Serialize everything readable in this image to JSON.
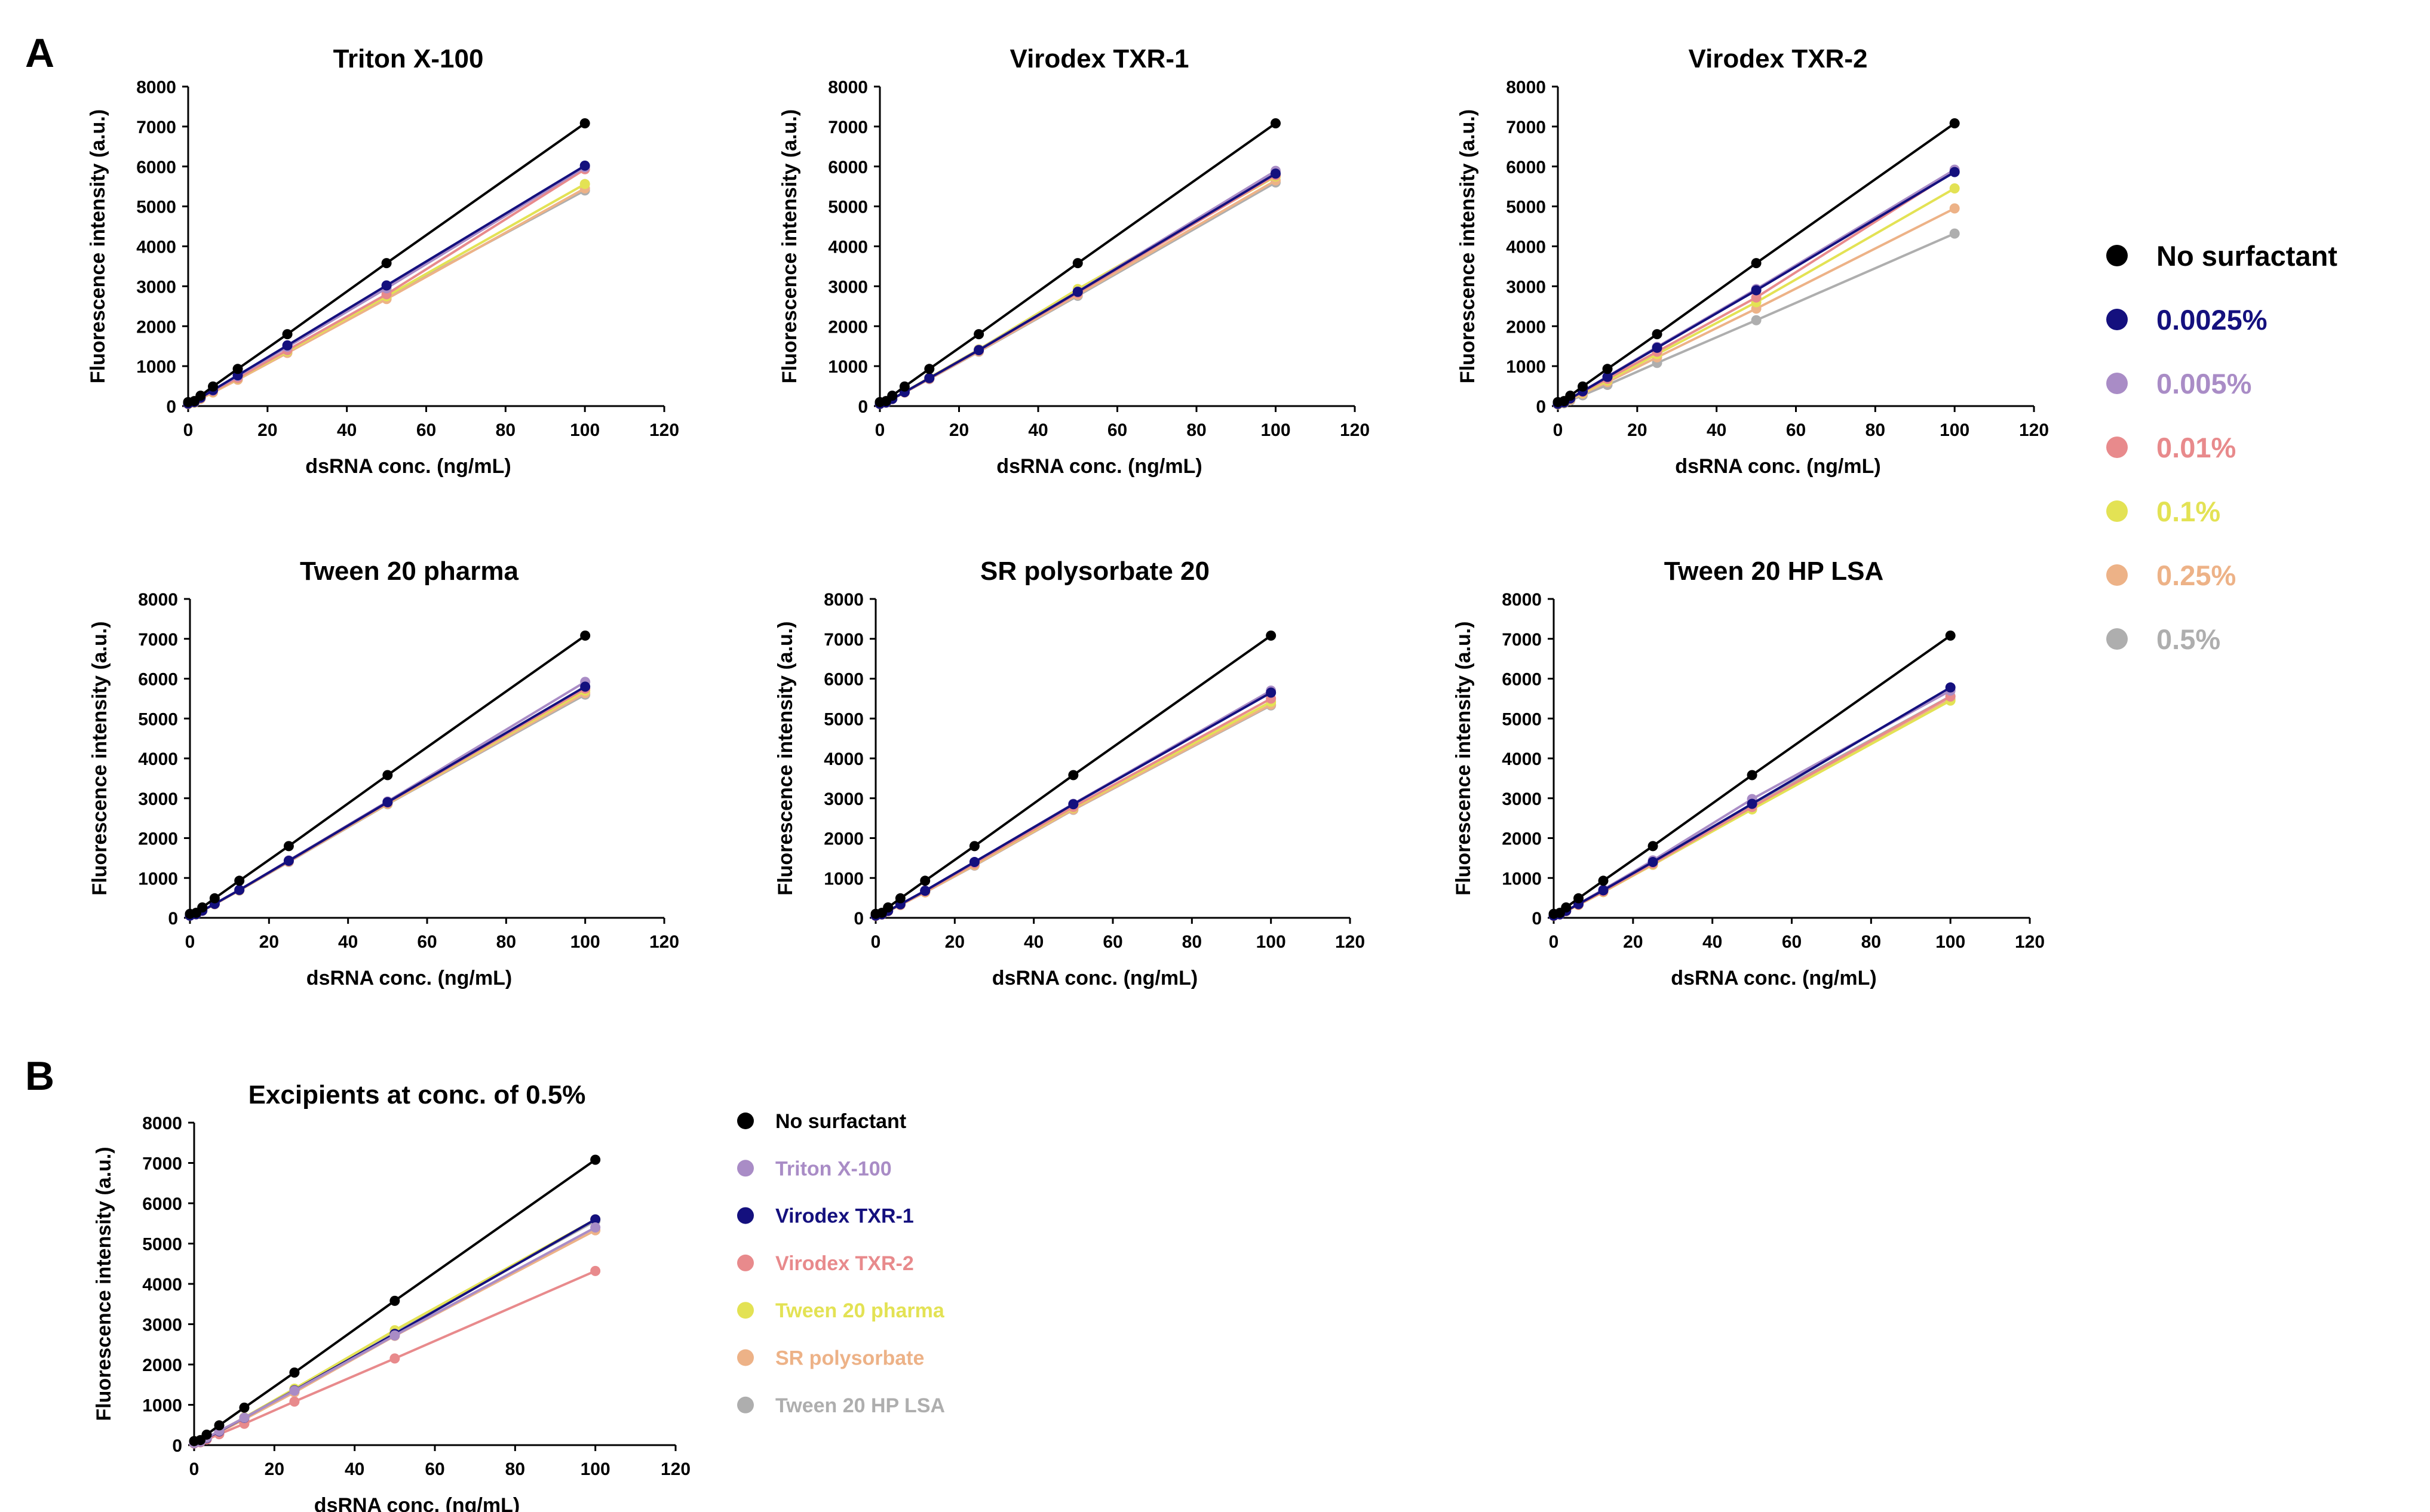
{
  "panel_letters": {
    "a": "A",
    "b": "B"
  },
  "legend_a": [
    {
      "label": "No surfactant",
      "color": "#000000"
    },
    {
      "label": "0.0025%",
      "color": "#14107e"
    },
    {
      "label": "0.005%",
      "color": "#a98cc6"
    },
    {
      "label": "0.01%",
      "color": "#e88a8c"
    },
    {
      "label": "0.1%",
      "color": "#e3e254"
    },
    {
      "label": "0.25%",
      "color": "#edb287"
    },
    {
      "label": "0.5%",
      "color": "#aeaeae"
    }
  ],
  "legend_b": [
    {
      "label": "No surfactant",
      "color": "#000000"
    },
    {
      "label": "Triton X-100",
      "color": "#a98cc6"
    },
    {
      "label": "Virodex TXR-1",
      "color": "#14107e"
    },
    {
      "label": "Virodex TXR-2",
      "color": "#e88a8c"
    },
    {
      "label": "Tween 20 pharma",
      "color": "#e3e254"
    },
    {
      "label": "SR polysorbate",
      "color": "#edb287"
    },
    {
      "label": "Tween 20 HP LSA",
      "color": "#aeaeae"
    }
  ],
  "chart_data": [
    {
      "type": "line",
      "title": "Triton X-100",
      "xlabel": "dsRNA conc. (ng/mL)",
      "ylabel": "Fluorescence intensity (a.u.)",
      "xlim": [
        0,
        120
      ],
      "ylim": [
        0,
        8000
      ],
      "xticks": [
        0,
        20,
        40,
        60,
        80,
        100,
        120
      ],
      "yticks": [
        0,
        1000,
        2000,
        3000,
        4000,
        5000,
        6000,
        7000,
        8000
      ],
      "x": [
        0,
        1.5625,
        3.125,
        6.25,
        12.5,
        25,
        50,
        100
      ],
      "series": [
        {
          "name": "No surfactant",
          "color": "#000000",
          "values": [
            100,
            125,
            260,
            490,
            930,
            1800,
            3580,
            7080
          ]
        },
        {
          "name": "0.0025%",
          "color": "#14107e",
          "values": [
            60,
            100,
            210,
            400,
            770,
            1520,
            3020,
            6020
          ]
        },
        {
          "name": "0.005%",
          "color": "#a98cc6",
          "values": [
            60,
            100,
            205,
            390,
            750,
            1480,
            2950,
            5980
          ]
        },
        {
          "name": "0.01%",
          "color": "#e88a8c",
          "values": [
            55,
            95,
            195,
            370,
            700,
            1400,
            2800,
            5930
          ]
        },
        {
          "name": "0.1%",
          "color": "#e3e254",
          "values": [
            55,
            90,
            190,
            360,
            690,
            1370,
            2750,
            5560
          ]
        },
        {
          "name": "0.25%",
          "color": "#edb287",
          "values": [
            50,
            85,
            180,
            340,
            660,
            1330,
            2680,
            5450
          ]
        },
        {
          "name": "0.5%",
          "color": "#aeaeae",
          "values": [
            50,
            85,
            185,
            350,
            680,
            1350,
            2720,
            5400
          ]
        }
      ]
    },
    {
      "type": "line",
      "title": "Virodex TXR-1",
      "xlabel": "dsRNA conc. (ng/mL)",
      "ylabel": "Fluorescence intensity (a.u.)",
      "xlim": [
        0,
        120
      ],
      "ylim": [
        0,
        8000
      ],
      "xticks": [
        0,
        20,
        40,
        60,
        80,
        100,
        120
      ],
      "yticks": [
        0,
        1000,
        2000,
        3000,
        4000,
        5000,
        6000,
        7000,
        8000
      ],
      "x": [
        0,
        1.5625,
        3.125,
        6.25,
        12.5,
        25,
        50,
        100
      ],
      "series": [
        {
          "name": "No surfactant",
          "color": "#000000",
          "values": [
            100,
            125,
            260,
            490,
            930,
            1800,
            3580,
            7080
          ]
        },
        {
          "name": "0.0025%",
          "color": "#14107e",
          "values": [
            55,
            90,
            180,
            350,
            700,
            1400,
            2860,
            5820
          ]
        },
        {
          "name": "0.005%",
          "color": "#a98cc6",
          "values": [
            55,
            90,
            180,
            350,
            700,
            1410,
            2870,
            5890
          ]
        },
        {
          "name": "0.01%",
          "color": "#e88a8c",
          "values": [
            55,
            90,
            180,
            345,
            690,
            1390,
            2830,
            5780
          ]
        },
        {
          "name": "0.1%",
          "color": "#e3e254",
          "values": [
            55,
            90,
            185,
            355,
            710,
            1420,
            2930,
            5750
          ]
        },
        {
          "name": "0.25%",
          "color": "#edb287",
          "values": [
            50,
            85,
            175,
            340,
            680,
            1370,
            2790,
            5650
          ]
        },
        {
          "name": "0.5%",
          "color": "#aeaeae",
          "values": [
            50,
            85,
            175,
            340,
            675,
            1360,
            2760,
            5600
          ]
        }
      ]
    },
    {
      "type": "line",
      "title": "Virodex TXR-2",
      "xlabel": "dsRNA conc. (ng/mL)",
      "ylabel": "Fluorescence intensity (a.u.)",
      "xlim": [
        0,
        120
      ],
      "ylim": [
        0,
        8000
      ],
      "xticks": [
        0,
        20,
        40,
        60,
        80,
        100,
        120
      ],
      "yticks": [
        0,
        1000,
        2000,
        3000,
        4000,
        5000,
        6000,
        7000,
        8000
      ],
      "x": [
        0,
        1.5625,
        3.125,
        6.25,
        12.5,
        25,
        50,
        100
      ],
      "series": [
        {
          "name": "No surfactant",
          "color": "#000000",
          "values": [
            100,
            125,
            260,
            490,
            930,
            1800,
            3580,
            7080
          ]
        },
        {
          "name": "0.0025%",
          "color": "#14107e",
          "values": [
            55,
            90,
            190,
            370,
            730,
            1460,
            2900,
            5860
          ]
        },
        {
          "name": "0.005%",
          "color": "#a98cc6",
          "values": [
            55,
            90,
            190,
            375,
            740,
            1480,
            2930,
            5920
          ]
        },
        {
          "name": "0.01%",
          "color": "#e88a8c",
          "values": [
            55,
            90,
            180,
            350,
            680,
            1360,
            2720,
            5880
          ]
        },
        {
          "name": "0.1%",
          "color": "#e3e254",
          "values": [
            50,
            85,
            170,
            330,
            640,
            1300,
            2600,
            5450
          ]
        },
        {
          "name": "0.25%",
          "color": "#edb287",
          "values": [
            45,
            80,
            160,
            310,
            600,
            1220,
            2440,
            4950
          ]
        },
        {
          "name": "0.5%",
          "color": "#aeaeae",
          "values": [
            40,
            70,
            140,
            270,
            530,
            1080,
            2150,
            4320
          ]
        }
      ]
    },
    {
      "type": "line",
      "title": "Tween 20 pharma",
      "xlabel": "dsRNA conc. (ng/mL)",
      "ylabel": "Fluorescence intensity (a.u.)",
      "xlim": [
        0,
        120
      ],
      "ylim": [
        0,
        8000
      ],
      "xticks": [
        0,
        20,
        40,
        60,
        80,
        100,
        120
      ],
      "yticks": [
        0,
        1000,
        2000,
        3000,
        4000,
        5000,
        6000,
        7000,
        8000
      ],
      "x": [
        0,
        1.5625,
        3.125,
        6.25,
        12.5,
        25,
        50,
        100
      ],
      "series": [
        {
          "name": "No surfactant",
          "color": "#000000",
          "values": [
            100,
            125,
            260,
            490,
            930,
            1800,
            3580,
            7080
          ]
        },
        {
          "name": "0.0025%",
          "color": "#14107e",
          "values": [
            55,
            90,
            180,
            350,
            700,
            1430,
            2900,
            5800
          ]
        },
        {
          "name": "0.005%",
          "color": "#a98cc6",
          "values": [
            55,
            90,
            180,
            350,
            700,
            1440,
            2920,
            5920
          ]
        },
        {
          "name": "0.01%",
          "color": "#e88a8c",
          "values": [
            55,
            88,
            178,
            345,
            695,
            1420,
            2880,
            5750
          ]
        },
        {
          "name": "0.1%",
          "color": "#e3e254",
          "values": [
            55,
            88,
            178,
            345,
            690,
            1420,
            2870,
            5700
          ]
        },
        {
          "name": "0.25%",
          "color": "#edb287",
          "values": [
            55,
            88,
            176,
            342,
            688,
            1410,
            2860,
            5640
          ]
        },
        {
          "name": "0.5%",
          "color": "#aeaeae",
          "values": [
            55,
            88,
            176,
            340,
            685,
            1400,
            2850,
            5600
          ]
        }
      ]
    },
    {
      "type": "line",
      "title": "SR polysorbate 20",
      "xlabel": "dsRNA conc. (ng/mL)",
      "ylabel": "Fluorescence intensity (a.u.)",
      "xlim": [
        0,
        120
      ],
      "ylim": [
        0,
        8000
      ],
      "xticks": [
        0,
        20,
        40,
        60,
        80,
        100,
        120
      ],
      "yticks": [
        0,
        1000,
        2000,
        3000,
        4000,
        5000,
        6000,
        7000,
        8000
      ],
      "x": [
        0,
        1.5625,
        3.125,
        6.25,
        12.5,
        25,
        50,
        100
      ],
      "series": [
        {
          "name": "No surfactant",
          "color": "#000000",
          "values": [
            100,
            125,
            260,
            490,
            930,
            1800,
            3580,
            7080
          ]
        },
        {
          "name": "0.0025%",
          "color": "#14107e",
          "values": [
            55,
            88,
            175,
            340,
            680,
            1400,
            2850,
            5650
          ]
        },
        {
          "name": "0.005%",
          "color": "#a98cc6",
          "values": [
            55,
            88,
            175,
            340,
            680,
            1400,
            2860,
            5700
          ]
        },
        {
          "name": "0.01%",
          "color": "#e88a8c",
          "values": [
            50,
            85,
            170,
            330,
            660,
            1360,
            2780,
            5500
          ]
        },
        {
          "name": "0.1%",
          "color": "#e3e254",
          "values": [
            50,
            85,
            170,
            330,
            655,
            1350,
            2760,
            5420
          ]
        },
        {
          "name": "0.25%",
          "color": "#edb287",
          "values": [
            48,
            82,
            165,
            320,
            640,
            1320,
            2720,
            5350
          ]
        },
        {
          "name": "0.5%",
          "color": "#aeaeae",
          "values": [
            48,
            82,
            165,
            320,
            640,
            1310,
            2710,
            5330
          ]
        }
      ]
    },
    {
      "type": "line",
      "title": "Tween 20 HP LSA",
      "xlabel": "dsRNA conc. (ng/mL)",
      "ylabel": "Fluorescence intensity (a.u.)",
      "xlim": [
        0,
        120
      ],
      "ylim": [
        0,
        8000
      ],
      "xticks": [
        0,
        20,
        40,
        60,
        80,
        100,
        120
      ],
      "yticks": [
        0,
        1000,
        2000,
        3000,
        4000,
        5000,
        6000,
        7000,
        8000
      ],
      "x": [
        0,
        1.5625,
        3.125,
        6.25,
        12.5,
        25,
        50,
        100
      ],
      "series": [
        {
          "name": "No surfactant",
          "color": "#000000",
          "values": [
            100,
            125,
            260,
            490,
            930,
            1800,
            3580,
            7080
          ]
        },
        {
          "name": "0.0025%",
          "color": "#14107e",
          "values": [
            55,
            88,
            175,
            345,
            690,
            1400,
            2860,
            5780
          ]
        },
        {
          "name": "0.005%",
          "color": "#a98cc6",
          "values": [
            55,
            90,
            180,
            350,
            710,
            1440,
            2980,
            5700
          ]
        },
        {
          "name": "0.01%",
          "color": "#e88a8c",
          "values": [
            50,
            85,
            170,
            330,
            660,
            1360,
            2780,
            5550
          ]
        },
        {
          "name": "0.1%",
          "color": "#e3e254",
          "values": [
            50,
            85,
            168,
            325,
            650,
            1340,
            2720,
            5450
          ]
        },
        {
          "name": "0.25%",
          "color": "#edb287",
          "values": [
            50,
            84,
            166,
            322,
            645,
            1330,
            2730,
            5480
          ]
        },
        {
          "name": "0.5%",
          "color": "#aeaeae",
          "values": [
            52,
            86,
            172,
            335,
            670,
            1380,
            2830,
            5560
          ]
        }
      ]
    },
    {
      "type": "line",
      "title": "Excipients at conc. of 0.5%",
      "xlabel": "dsRNA conc. (ng/mL)",
      "ylabel": "Fluorescence intensity (a.u.)",
      "xlim": [
        0,
        120
      ],
      "ylim": [
        0,
        8000
      ],
      "xticks": [
        0,
        20,
        40,
        60,
        80,
        100,
        120
      ],
      "yticks": [
        0,
        1000,
        2000,
        3000,
        4000,
        5000,
        6000,
        7000,
        8000
      ],
      "x": [
        0,
        1.5625,
        3.125,
        6.25,
        12.5,
        25,
        50,
        100
      ],
      "series": [
        {
          "name": "No surfactant",
          "color": "#000000",
          "values": [
            100,
            125,
            260,
            490,
            930,
            1800,
            3580,
            7080
          ]
        },
        {
          "name": "Triton X-100",
          "color": "#a98cc6",
          "values": [
            50,
            85,
            185,
            350,
            680,
            1350,
            2720,
            5400
          ]
        },
        {
          "name": "Virodex TXR-1",
          "color": "#14107e",
          "values": [
            50,
            85,
            175,
            340,
            675,
            1360,
            2760,
            5600
          ]
        },
        {
          "name": "Virodex TXR-2",
          "color": "#e88a8c",
          "values": [
            40,
            70,
            140,
            270,
            530,
            1080,
            2150,
            4320
          ]
        },
        {
          "name": "Tween 20 pharma",
          "color": "#e3e254",
          "values": [
            55,
            88,
            176,
            340,
            685,
            1400,
            2850,
            5600
          ]
        },
        {
          "name": "SR polysorbate",
          "color": "#edb287",
          "values": [
            48,
            82,
            165,
            320,
            640,
            1310,
            2710,
            5330
          ]
        },
        {
          "name": "Tween 20 HP LSA",
          "color": "#aeaeae",
          "values": [
            52,
            86,
            172,
            335,
            670,
            1380,
            2830,
            5560
          ]
        }
      ]
    }
  ]
}
